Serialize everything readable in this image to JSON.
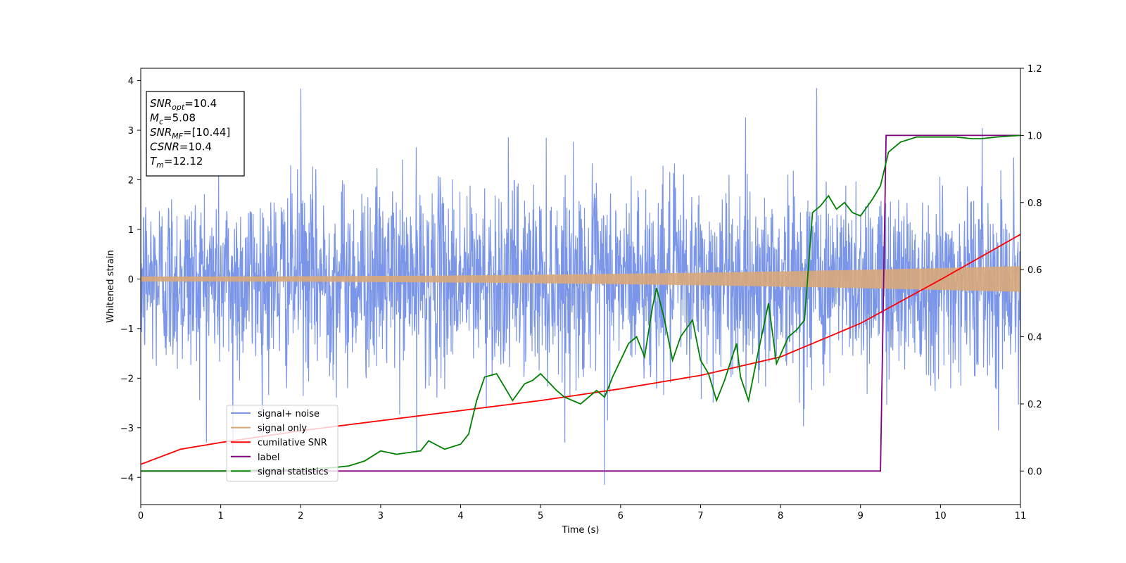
{
  "chart_data": {
    "type": "line",
    "xlabel": "Time (s)",
    "ylabel": "Whitened strain",
    "xlim": [
      0,
      11
    ],
    "ylim_left": [
      -4.55,
      4.25
    ],
    "ylim_right": [
      -0.1,
      1.2
    ],
    "xticks": [
      0,
      1,
      2,
      3,
      4,
      5,
      6,
      7,
      8,
      9,
      10,
      11
    ],
    "yticks_left": [
      -4,
      -3,
      -2,
      -1,
      0,
      1,
      2,
      3,
      4
    ],
    "yticks_right": [
      0.0,
      0.2,
      0.4,
      0.6,
      0.8,
      1.0,
      1.2
    ],
    "grid": false,
    "legend_position": "lower-left",
    "annotation_box": {
      "lines": [
        {
          "base": "SNR",
          "sub": "opt",
          "rest": "=10.4"
        },
        {
          "base": "M",
          "sub": "c",
          "rest": "=5.08"
        },
        {
          "base": "SNR",
          "sub": "MF",
          "rest": "=[10.44]"
        },
        {
          "base": "CSNR",
          "sub": "",
          "rest": "=10.4"
        },
        {
          "base": "T",
          "sub": "m",
          "rest": "=12.12"
        }
      ]
    },
    "series": [
      {
        "name": "signal+ noise",
        "axis": "left",
        "color": "#7b96e8",
        "description_values": "noise band approx ±2 with spikes to ±3.8",
        "amplitude_typical": 1.9,
        "extremes": [
          [
            2.0,
            3.84
          ],
          [
            5.8,
            -4.15
          ],
          [
            8.45,
            3.85
          ],
          [
            1.15,
            -3.5
          ],
          [
            3.45,
            -3.5
          ]
        ]
      },
      {
        "name": "signal only",
        "axis": "left",
        "color": "#d9a87a",
        "amplitude_start": 0.05,
        "amplitude_end": 0.26
      },
      {
        "name": "cumilative SNR",
        "axis": "right",
        "color": "#ff0000",
        "x": [
          0,
          0.5,
          1,
          2,
          3,
          4,
          5,
          6,
          7,
          8,
          9,
          10,
          11
        ],
        "y": [
          0.02,
          0.065,
          0.085,
          0.12,
          0.15,
          0.18,
          0.21,
          0.245,
          0.285,
          0.34,
          0.44,
          0.57,
          0.705
        ]
      },
      {
        "name": "label",
        "axis": "right",
        "color": "#800080",
        "x": [
          0,
          9.25,
          9.32,
          11
        ],
        "y": [
          0.0,
          0.0,
          1.0,
          1.0
        ]
      },
      {
        "name": "signal statistics",
        "axis": "right",
        "color": "#008000",
        "x": [
          0,
          1,
          2,
          2.4,
          2.6,
          2.8,
          3.0,
          3.2,
          3.5,
          3.6,
          3.8,
          4.0,
          4.1,
          4.2,
          4.3,
          4.45,
          4.55,
          4.65,
          4.8,
          4.9,
          5.0,
          5.2,
          5.3,
          5.5,
          5.7,
          5.8,
          5.9,
          6.0,
          6.1,
          6.2,
          6.3,
          6.4,
          6.45,
          6.55,
          6.65,
          6.75,
          6.9,
          7.0,
          7.1,
          7.2,
          7.3,
          7.45,
          7.5,
          7.6,
          7.7,
          7.85,
          7.95,
          8.1,
          8.2,
          8.3,
          8.4,
          8.5,
          8.6,
          8.7,
          8.8,
          8.9,
          9.0,
          9.15,
          9.25,
          9.35,
          9.5,
          9.7,
          10.0,
          10.2,
          10.4,
          10.5,
          10.7,
          11.0
        ],
        "y": [
          0.0,
          0.0,
          0.005,
          0.01,
          0.015,
          0.03,
          0.06,
          0.05,
          0.06,
          0.09,
          0.065,
          0.08,
          0.11,
          0.21,
          0.28,
          0.29,
          0.25,
          0.21,
          0.26,
          0.27,
          0.29,
          0.24,
          0.22,
          0.2,
          0.24,
          0.22,
          0.28,
          0.33,
          0.38,
          0.4,
          0.34,
          0.49,
          0.545,
          0.45,
          0.33,
          0.4,
          0.45,
          0.33,
          0.29,
          0.21,
          0.27,
          0.38,
          0.28,
          0.21,
          0.33,
          0.5,
          0.32,
          0.4,
          0.42,
          0.45,
          0.77,
          0.79,
          0.82,
          0.78,
          0.8,
          0.77,
          0.76,
          0.81,
          0.85,
          0.95,
          0.98,
          0.995,
          0.995,
          0.995,
          0.99,
          0.99,
          0.995,
          1.0
        ]
      }
    ]
  }
}
